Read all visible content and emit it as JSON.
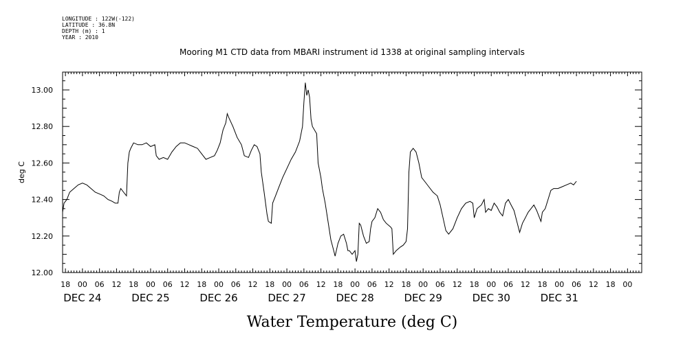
{
  "header": {
    "longitude": "LONGITUDE : 122W(-122)",
    "latitude": "LATITUDE : 36.8N",
    "depth": "DEPTH (m) : 1",
    "year": "YEAR : 2010"
  },
  "chart_data": {
    "type": "line",
    "title": "Mooring M1 CTD data from MBARI instrument id 1338 at original sampling intervals",
    "xlabel": "Water Temperature (deg C)",
    "ylabel": "deg C",
    "ylim": [
      12.0,
      13.1
    ],
    "xlim_hours": [
      -7,
      197
    ],
    "x_unit": "hours since 2010-12-24 00:00",
    "y_ticks": [
      "12.00",
      "12.20",
      "12.40",
      "12.60",
      "12.80",
      "13.00"
    ],
    "hour_ticks": [
      {
        "h": -6,
        "label": "18"
      },
      {
        "h": 0,
        "label": "00"
      },
      {
        "h": 6,
        "label": "06"
      },
      {
        "h": 12,
        "label": "12"
      },
      {
        "h": 18,
        "label": "18"
      },
      {
        "h": 24,
        "label": "00"
      },
      {
        "h": 30,
        "label": "06"
      },
      {
        "h": 36,
        "label": "12"
      },
      {
        "h": 42,
        "label": "18"
      },
      {
        "h": 48,
        "label": "00"
      },
      {
        "h": 54,
        "label": "06"
      },
      {
        "h": 60,
        "label": "12"
      },
      {
        "h": 66,
        "label": "18"
      },
      {
        "h": 72,
        "label": "00"
      },
      {
        "h": 78,
        "label": "06"
      },
      {
        "h": 84,
        "label": "12"
      },
      {
        "h": 90,
        "label": "18"
      },
      {
        "h": 96,
        "label": "00"
      },
      {
        "h": 102,
        "label": "06"
      },
      {
        "h": 108,
        "label": "12"
      },
      {
        "h": 114,
        "label": "18"
      },
      {
        "h": 120,
        "label": "00"
      },
      {
        "h": 126,
        "label": "06"
      },
      {
        "h": 132,
        "label": "12"
      },
      {
        "h": 138,
        "label": "18"
      },
      {
        "h": 144,
        "label": "00"
      },
      {
        "h": 150,
        "label": "06"
      },
      {
        "h": 156,
        "label": "12"
      },
      {
        "h": 162,
        "label": "18"
      },
      {
        "h": 168,
        "label": "00"
      },
      {
        "h": 174,
        "label": "06"
      },
      {
        "h": 180,
        "label": "12"
      },
      {
        "h": 186,
        "label": "18"
      },
      {
        "h": 192,
        "label": "00"
      }
    ],
    "day_labels": [
      {
        "h": 0,
        "label": "DEC 24"
      },
      {
        "h": 24,
        "label": "DEC 25"
      },
      {
        "h": 48,
        "label": "DEC 26"
      },
      {
        "h": 72,
        "label": "DEC 27"
      },
      {
        "h": 96,
        "label": "DEC 28"
      },
      {
        "h": 120,
        "label": "DEC 29"
      },
      {
        "h": 144,
        "label": "DEC 30"
      },
      {
        "h": 168,
        "label": "DEC 31"
      }
    ],
    "series": [
      {
        "name": "Water Temperature",
        "points": [
          [
            -7,
            12.33
          ],
          [
            -6.5,
            12.38
          ],
          [
            -5.5,
            12.4
          ],
          [
            -4.5,
            12.44
          ],
          [
            -3,
            12.46
          ],
          [
            -1.5,
            12.48
          ],
          [
            0,
            12.49
          ],
          [
            1.5,
            12.48
          ],
          [
            3,
            12.46
          ],
          [
            4.5,
            12.44
          ],
          [
            6,
            12.43
          ],
          [
            7.5,
            12.42
          ],
          [
            9,
            12.4
          ],
          [
            10.5,
            12.39
          ],
          [
            11.5,
            12.38
          ],
          [
            12.5,
            12.38
          ],
          [
            13,
            12.44
          ],
          [
            13.5,
            12.46
          ],
          [
            14.5,
            12.44
          ],
          [
            15.5,
            12.42
          ],
          [
            16,
            12.6
          ],
          [
            16.5,
            12.66
          ],
          [
            17,
            12.68
          ],
          [
            18,
            12.71
          ],
          [
            19.5,
            12.7
          ],
          [
            21,
            12.7
          ],
          [
            22.5,
            12.71
          ],
          [
            24,
            12.69
          ],
          [
            25.5,
            12.7
          ],
          [
            26,
            12.64
          ],
          [
            27,
            12.62
          ],
          [
            28.5,
            12.63
          ],
          [
            30,
            12.62
          ],
          [
            31.5,
            12.66
          ],
          [
            33,
            12.69
          ],
          [
            34.5,
            12.71
          ],
          [
            36,
            12.71
          ],
          [
            37.5,
            12.7
          ],
          [
            39,
            12.69
          ],
          [
            40.5,
            12.68
          ],
          [
            42,
            12.65
          ],
          [
            43.5,
            12.62
          ],
          [
            45,
            12.63
          ],
          [
            46.5,
            12.64
          ],
          [
            47.5,
            12.67
          ],
          [
            48.5,
            12.71
          ],
          [
            49.5,
            12.78
          ],
          [
            50.5,
            12.82
          ],
          [
            51,
            12.87
          ],
          [
            51.5,
            12.85
          ],
          [
            53,
            12.8
          ],
          [
            54.5,
            12.74
          ],
          [
            56,
            12.7
          ],
          [
            57,
            12.64
          ],
          [
            58.5,
            12.63
          ],
          [
            59.5,
            12.67
          ],
          [
            60.5,
            12.7
          ],
          [
            61.5,
            12.69
          ],
          [
            62.5,
            12.65
          ],
          [
            63,
            12.55
          ],
          [
            64,
            12.44
          ],
          [
            65,
            12.32
          ],
          [
            65.5,
            12.28
          ],
          [
            66.5,
            12.27
          ],
          [
            67,
            12.38
          ],
          [
            68,
            12.42
          ],
          [
            69,
            12.46
          ],
          [
            70.5,
            12.52
          ],
          [
            72,
            12.57
          ],
          [
            73.5,
            12.62
          ],
          [
            75,
            12.66
          ],
          [
            76.5,
            12.72
          ],
          [
            77.5,
            12.8
          ],
          [
            78,
            12.93
          ],
          [
            78.5,
            13.04
          ],
          [
            79,
            12.97
          ],
          [
            79.5,
            13.0
          ],
          [
            80,
            12.96
          ],
          [
            80.5,
            12.84
          ],
          [
            81,
            12.8
          ],
          [
            82.5,
            12.76
          ],
          [
            83,
            12.6
          ],
          [
            84,
            12.52
          ],
          [
            84.5,
            12.46
          ],
          [
            85.5,
            12.38
          ],
          [
            86.5,
            12.28
          ],
          [
            87.5,
            12.18
          ],
          [
            88.5,
            12.12
          ],
          [
            89,
            12.09
          ],
          [
            90,
            12.16
          ],
          [
            91,
            12.2
          ],
          [
            92,
            12.21
          ],
          [
            93,
            12.16
          ],
          [
            93.5,
            12.12
          ],
          [
            94,
            12.12
          ],
          [
            95,
            12.1
          ],
          [
            96,
            12.12
          ],
          [
            96.5,
            12.06
          ],
          [
            97,
            12.1
          ],
          [
            97.5,
            12.27
          ],
          [
            98,
            12.26
          ],
          [
            99,
            12.2
          ],
          [
            100,
            12.16
          ],
          [
            101,
            12.17
          ],
          [
            101.5,
            12.24
          ],
          [
            102,
            12.28
          ],
          [
            103,
            12.3
          ],
          [
            104,
            12.35
          ],
          [
            105,
            12.33
          ],
          [
            106,
            12.29
          ],
          [
            107,
            12.27
          ],
          [
            108.5,
            12.25
          ],
          [
            109,
            12.24
          ],
          [
            109.5,
            12.1
          ],
          [
            110.5,
            12.12
          ],
          [
            112,
            12.14
          ],
          [
            113,
            12.15
          ],
          [
            114,
            12.17
          ],
          [
            114.5,
            12.24
          ],
          [
            115,
            12.55
          ],
          [
            115.5,
            12.66
          ],
          [
            116.5,
            12.68
          ],
          [
            117.5,
            12.66
          ],
          [
            118.5,
            12.6
          ],
          [
            119.5,
            12.52
          ],
          [
            120.5,
            12.5
          ],
          [
            122,
            12.47
          ],
          [
            123.5,
            12.44
          ],
          [
            125,
            12.42
          ],
          [
            126,
            12.37
          ],
          [
            127,
            12.3
          ],
          [
            128,
            12.23
          ],
          [
            129,
            12.21
          ],
          [
            130.5,
            12.24
          ],
          [
            132,
            12.3
          ],
          [
            133.5,
            12.35
          ],
          [
            135,
            12.38
          ],
          [
            136.5,
            12.39
          ],
          [
            137.5,
            12.38
          ],
          [
            138,
            12.3
          ],
          [
            139,
            12.35
          ],
          [
            140.5,
            12.37
          ],
          [
            141.5,
            12.4
          ],
          [
            142,
            12.33
          ],
          [
            143,
            12.35
          ],
          [
            144,
            12.34
          ],
          [
            145,
            12.38
          ],
          [
            146,
            12.36
          ],
          [
            147,
            12.33
          ],
          [
            148,
            12.31
          ],
          [
            149,
            12.38
          ],
          [
            150,
            12.4
          ],
          [
            151,
            12.37
          ],
          [
            152,
            12.34
          ],
          [
            153,
            12.28
          ],
          [
            154,
            12.22
          ],
          [
            155,
            12.27
          ],
          [
            156,
            12.3
          ],
          [
            157,
            12.33
          ],
          [
            158,
            12.35
          ],
          [
            159,
            12.37
          ],
          [
            160,
            12.34
          ],
          [
            161,
            12.3
          ],
          [
            161.5,
            12.28
          ],
          [
            162,
            12.33
          ],
          [
            163,
            12.35
          ],
          [
            164,
            12.4
          ],
          [
            165,
            12.45
          ],
          [
            166,
            12.46
          ],
          [
            167.5,
            12.46
          ],
          [
            169,
            12.47
          ],
          [
            170.5,
            12.48
          ],
          [
            172,
            12.49
          ],
          [
            173,
            12.48
          ],
          [
            174,
            12.5
          ]
        ]
      }
    ]
  }
}
